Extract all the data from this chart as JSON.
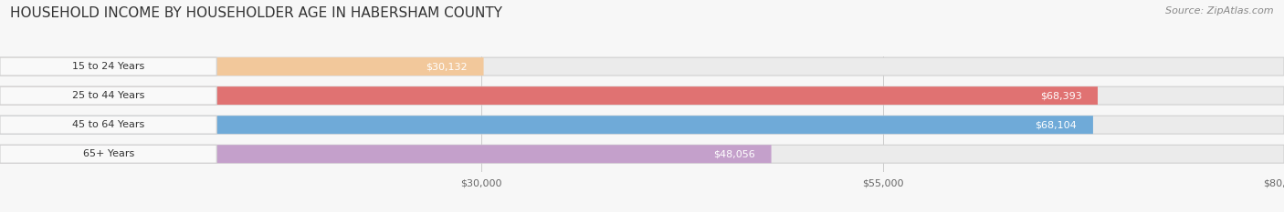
{
  "title": "HOUSEHOLD INCOME BY HOUSEHOLDER AGE IN HABERSHAM COUNTY",
  "source": "Source: ZipAtlas.com",
  "categories": [
    "15 to 24 Years",
    "25 to 44 Years",
    "45 to 64 Years",
    "65+ Years"
  ],
  "values": [
    30132,
    68393,
    68104,
    48056
  ],
  "bar_colors": [
    "#f2c89b",
    "#e07272",
    "#6faad8",
    "#c4a0cb"
  ],
  "bar_bg_color": "#ebebeb",
  "label_bg_color": "#ffffff",
  "xmin": 0,
  "xmax": 80000,
  "xticks": [
    30000,
    55000,
    80000
  ],
  "xtick_labels": [
    "$30,000",
    "$55,000",
    "$80,000"
  ],
  "bar_height": 0.62,
  "figsize": [
    14.06,
    2.33
  ],
  "dpi": 100,
  "value_labels": [
    "$30,132",
    "$68,393",
    "$68,104",
    "$48,056"
  ],
  "bg_color": "#f7f7f7",
  "title_fontsize": 11,
  "source_fontsize": 8,
  "label_fontsize": 8,
  "value_fontsize": 8
}
